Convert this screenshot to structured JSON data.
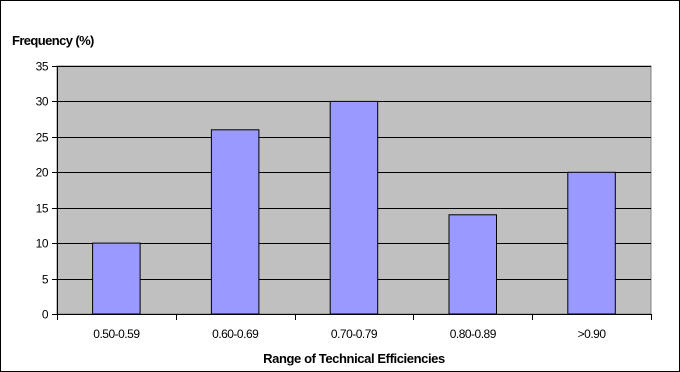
{
  "chart_data": {
    "type": "bar",
    "title": "",
    "ylabel": "Frequency (%)",
    "xlabel": "Range of Technical Efficiencies",
    "categories": [
      "0.50-0.59",
      "0.60-0.69",
      "0.70-0.79",
      "0.80-0.89",
      ">0.90"
    ],
    "values": [
      10,
      26,
      30,
      14,
      20
    ],
    "ylim": [
      0,
      35
    ],
    "yticks": [
      "0",
      "5",
      "10",
      "15",
      "20",
      "25",
      "30",
      "35"
    ],
    "grid": true,
    "legend": "none",
    "colors": {
      "plot_background": "#c0c0c0",
      "bar_fill": "#9999ff",
      "bar_stroke": "#000000",
      "gridline": "#000000"
    }
  }
}
